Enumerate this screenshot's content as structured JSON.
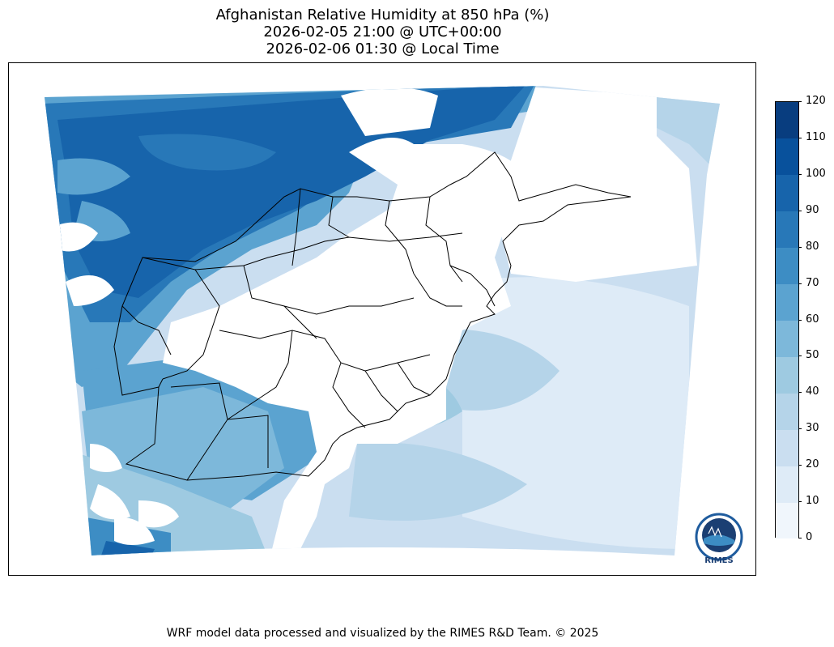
{
  "title": {
    "line1": "Afghanistan Relative Humidity at 850 hPa (%)",
    "line2": "2026-02-05 21:00 @ UTC+00:00",
    "line3": "2026-02-06 01:30 @ Local Time"
  },
  "colorbar": {
    "ticks": [
      "0",
      "10",
      "20",
      "30",
      "40",
      "50",
      "60",
      "70",
      "80",
      "90",
      "100",
      "110",
      "120"
    ],
    "colors": [
      "#f0f6fc",
      "#deebf7",
      "#cadef0",
      "#b5d4e9",
      "#9ecae1",
      "#7db8da",
      "#5ba3d0",
      "#3d8dc4",
      "#2878b8",
      "#1764ab",
      "#08519c",
      "#083d7f"
    ]
  },
  "footer": "WRF model data processed and visualized by the RIMES R&D Team. © 2025",
  "logo": {
    "text": "RIMES",
    "colors": {
      "ring": "#1f5c9e",
      "fill": "#1b3f73"
    }
  }
}
